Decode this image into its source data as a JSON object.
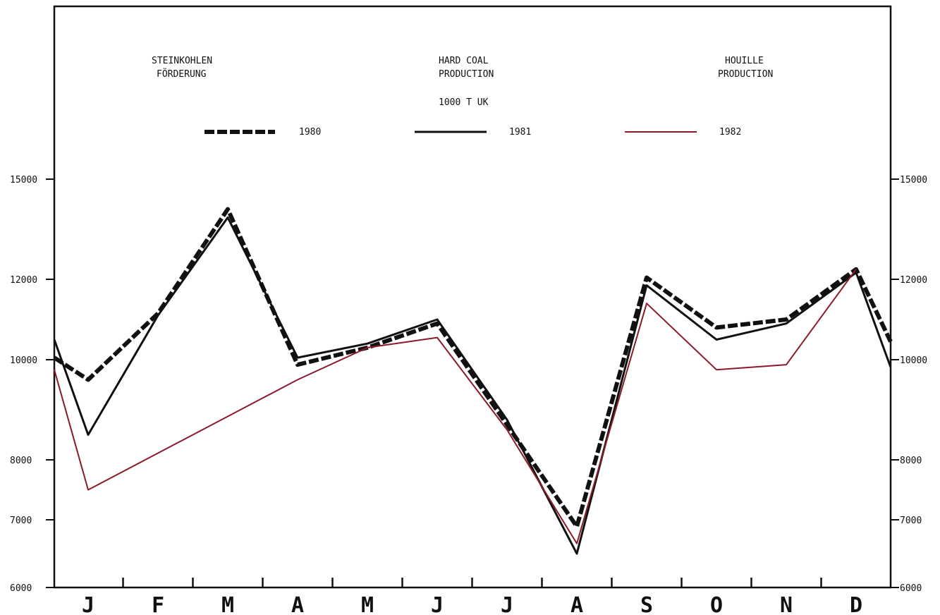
{
  "chart_data": {
    "type": "line",
    "header": {
      "de_line1": "STEINKOHLEN",
      "de_line2": "FÖRDERUNG",
      "en_line1": "HARD COAL",
      "en_line2": "PRODUCTION",
      "fr_line1": "HOUILLE",
      "fr_line2": "PRODUCTION",
      "unit": "1000 T  UK"
    },
    "categories": [
      "J",
      "F",
      "M",
      "A",
      "M",
      "J",
      "J",
      "A",
      "S",
      "O",
      "N",
      "D"
    ],
    "y_ticks": [
      "15000",
      "12000",
      "10000",
      "8000",
      "7000",
      "6000"
    ],
    "y_tick_values": [
      15000,
      12000,
      10000,
      8000,
      7000,
      6000
    ],
    "ylim": [
      6000,
      15000
    ],
    "y_scale": "nonlinear",
    "grid": false,
    "legend_position": "top",
    "series": [
      {
        "name": "1980",
        "style": "dashed-thick",
        "color": "#111111",
        "start": 10050,
        "values": [
          9600,
          11150,
          14100,
          9900,
          10300,
          10900,
          8700,
          6900,
          12050,
          10800,
          11000,
          12300
        ],
        "end": 10450
      },
      {
        "name": "1981",
        "style": "solid",
        "color": "#111111",
        "start": 10500,
        "values": [
          8500,
          11100,
          13850,
          10050,
          10400,
          11000,
          8800,
          6500,
          11850,
          10500,
          10900,
          12200
        ],
        "end": 9850
      },
      {
        "name": "1982",
        "style": "solid",
        "color": "#8b1a2b",
        "start": 9800,
        "values": [
          7500,
          null,
          null,
          9600,
          10300,
          10550,
          8600,
          6650,
          11400,
          9800,
          9900,
          12300
        ],
        "end": null
      }
    ]
  }
}
